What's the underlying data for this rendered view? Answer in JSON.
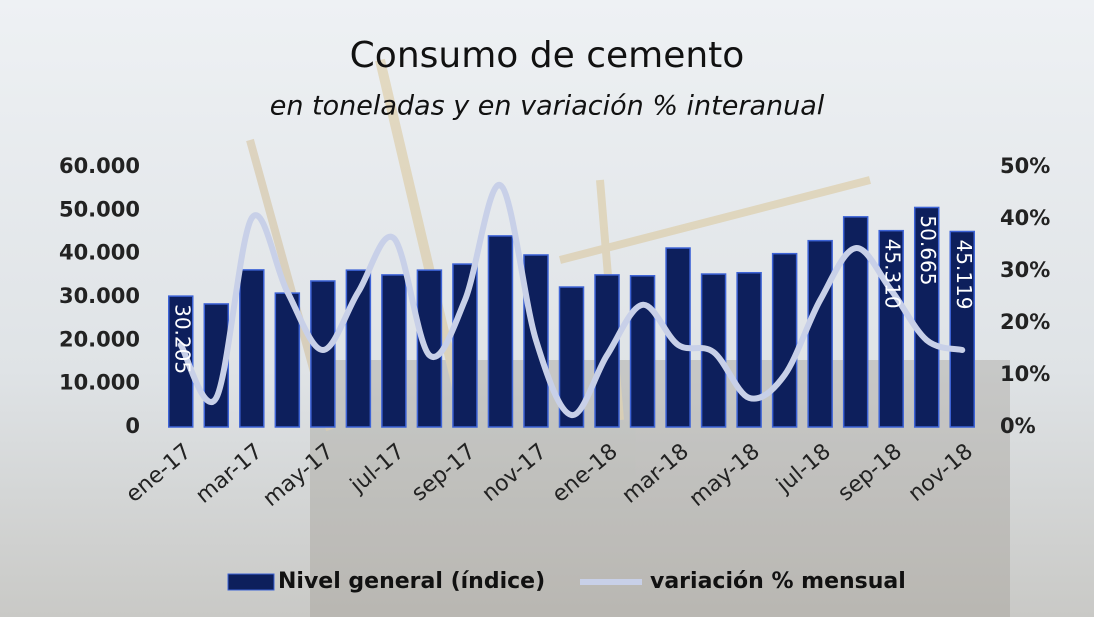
{
  "chart_data": {
    "type": "bar",
    "title": "Consumo de cemento",
    "subtitle": "en toneladas y en variación % interanual",
    "categories": [
      "ene-17",
      null,
      "mar-17",
      null,
      "may-17",
      null,
      "jul-17",
      null,
      "sep-17",
      null,
      "nov-17",
      null,
      "ene-18",
      null,
      "mar-18",
      null,
      "may-18",
      null,
      "jul-18",
      null,
      "sep-18",
      null,
      "nov-18"
    ],
    "series": [
      {
        "name": "Nivel general (índice)",
        "type": "bar",
        "color": "#0d1f5c",
        "values": [
          30205,
          28400,
          36260,
          30900,
          33700,
          36200,
          35100,
          36200,
          37600,
          44100,
          39700,
          32300,
          35100,
          34900,
          41300,
          35300,
          35600,
          40000,
          43000,
          48500,
          45310,
          50665,
          45119
        ],
        "value_labels": [
          "30.205",
          null,
          null,
          null,
          null,
          null,
          null,
          null,
          null,
          null,
          null,
          null,
          null,
          null,
          null,
          null,
          null,
          null,
          null,
          null,
          "45.310",
          "50.665",
          "45.119"
        ]
      },
      {
        "name": "variación % mensual",
        "type": "line",
        "axis": "y2",
        "color": "#c8d0e8",
        "values": [
          15.8,
          5.6,
          40.2,
          26,
          14.8,
          26,
          36.3,
          13.8,
          24.4,
          46.5,
          16.7,
          2.3,
          13.8,
          23.5,
          15.8,
          14.4,
          5.6,
          10,
          24.4,
          34.4,
          26.3,
          16.7,
          14.8
        ]
      }
    ],
    "ylim": [
      0,
      60000
    ],
    "yticks": [
      0,
      {
        "value": 10000,
        "label": "10.000"
      },
      {
        "value": 20000,
        "label": "20.000"
      },
      {
        "value": 30000,
        "label": "30.000"
      },
      {
        "value": 40000,
        "label": "40.000"
      },
      {
        "value": 50000,
        "label": "50.000"
      },
      {
        "value": 60000,
        "label": "60.000"
      }
    ],
    "y2lim": [
      0,
      50
    ],
    "y2ticks": [
      {
        "value": 0,
        "label": "0%"
      },
      {
        "value": 10,
        "label": "10%"
      },
      {
        "value": 20,
        "label": "20%"
      },
      {
        "value": 30,
        "label": "30%"
      },
      {
        "value": 40,
        "label": "40%"
      },
      {
        "value": 50,
        "label": "50%"
      }
    ],
    "legend": "bottom"
  }
}
